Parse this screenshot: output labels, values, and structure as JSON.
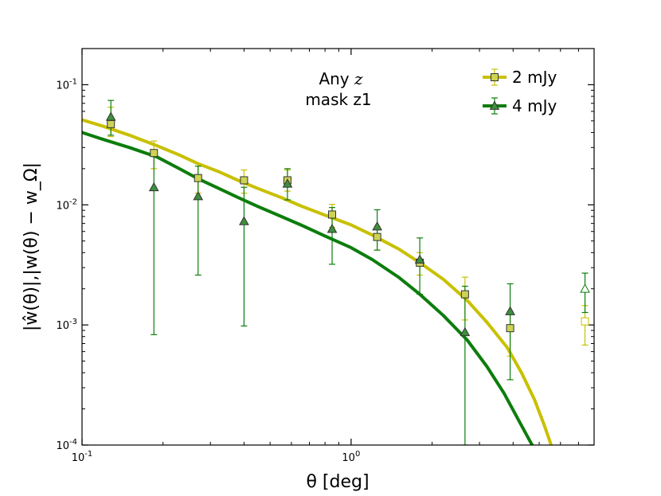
{
  "chart_data": {
    "type": "line",
    "xlabel": "θ [deg]",
    "ylabel": "|ŵ(θ)|,|w(θ) − w_Ω|",
    "xscale": "log",
    "yscale": "log",
    "xlim": [
      0.1,
      8.0
    ],
    "ylim": [
      0.0001,
      0.2
    ],
    "x_ticks": [
      {
        "value": 0.1,
        "base": "10",
        "exp": "-1"
      },
      {
        "value": 1.0,
        "base": "10",
        "exp": "0"
      }
    ],
    "y_ticks": [
      {
        "value": 0.0001,
        "base": "10",
        "exp": "-4"
      },
      {
        "value": 0.001,
        "base": "10",
        "exp": "-3"
      },
      {
        "value": 0.01,
        "base": "10",
        "exp": "-2"
      },
      {
        "value": 0.1,
        "base": "10",
        "exp": "-1"
      }
    ],
    "annotation": {
      "line1_prefix": "Any",
      "line1_var": "z",
      "line2": "mask z1"
    },
    "legend": {
      "placement": "top-right"
    },
    "series": [
      {
        "name": "2 mJy",
        "color": "#c8c000",
        "marker": "square",
        "marker_fill": "#cdd355",
        "model_x": [
          0.1,
          0.12,
          0.15,
          0.19,
          0.23,
          0.27,
          0.32,
          0.38,
          0.45,
          0.55,
          0.65,
          0.8,
          1.0,
          1.2,
          1.5,
          1.8,
          2.2,
          2.7,
          3.2,
          3.8,
          4.3,
          4.8,
          5.2,
          5.5,
          5.6
        ],
        "model_y": [
          0.051,
          0.045,
          0.038,
          0.031,
          0.026,
          0.022,
          0.019,
          0.016,
          0.0137,
          0.0115,
          0.0098,
          0.0082,
          0.0068,
          0.0056,
          0.0043,
          0.0033,
          0.0024,
          0.0016,
          0.00105,
          0.00065,
          0.0004,
          0.00024,
          0.00015,
          0.000105,
          9e-05
        ],
        "points": [
          {
            "x": 0.128,
            "y": 0.047,
            "lo": 0.037,
            "hi": 0.065,
            "open": false
          },
          {
            "x": 0.185,
            "y": 0.027,
            "lo": 0.02,
            "hi": 0.034,
            "open": false
          },
          {
            "x": 0.27,
            "y": 0.0167,
            "lo": 0.0125,
            "hi": 0.022,
            "open": false
          },
          {
            "x": 0.4,
            "y": 0.016,
            "lo": 0.0125,
            "hi": 0.0195,
            "open": false
          },
          {
            "x": 0.58,
            "y": 0.016,
            "lo": 0.013,
            "hi": 0.0195,
            "open": false
          },
          {
            "x": 0.85,
            "y": 0.0083,
            "lo": 0.0065,
            "hi": 0.0101,
            "open": false
          },
          {
            "x": 1.25,
            "y": 0.0054,
            "lo": 0.0042,
            "hi": 0.0066,
            "open": false
          },
          {
            "x": 1.8,
            "y": 0.0033,
            "lo": 0.0026,
            "hi": 0.004,
            "open": false
          },
          {
            "x": 2.65,
            "y": 0.0018,
            "lo": 0.0011,
            "hi": 0.0025,
            "open": false
          },
          {
            "x": 3.9,
            "y": 0.00094,
            "lo": 0.00055,
            "hi": 0.0013,
            "open": false
          },
          {
            "x": 7.4,
            "y": 0.00107,
            "lo": 0.00068,
            "hi": 0.00145,
            "open": true
          }
        ]
      },
      {
        "name": "4 mJy",
        "color": "#0c7d0c",
        "marker": "triangle",
        "marker_fill": "#3e8f3e",
        "model_x": [
          0.1,
          0.12,
          0.15,
          0.19,
          0.23,
          0.27,
          0.32,
          0.38,
          0.45,
          0.55,
          0.65,
          0.8,
          1.0,
          1.2,
          1.5,
          1.8,
          2.2,
          2.7,
          3.2,
          3.7,
          4.2,
          4.6,
          4.9,
          5.1
        ],
        "model_y": [
          0.04,
          0.035,
          0.03,
          0.025,
          0.02,
          0.0165,
          0.0138,
          0.0115,
          0.0097,
          0.008,
          0.0068,
          0.0055,
          0.0044,
          0.0035,
          0.0025,
          0.0018,
          0.0012,
          0.00075,
          0.00045,
          0.00027,
          0.00016,
          0.00011,
          8.5e-05,
          7e-05
        ],
        "points": [
          {
            "x": 0.128,
            "y": 0.054,
            "lo": 0.038,
            "hi": 0.074,
            "open": false
          },
          {
            "x": 0.185,
            "y": 0.014,
            "lo": 0.00083,
            "hi": 0.027,
            "open": false
          },
          {
            "x": 0.27,
            "y": 0.0118,
            "lo": 0.0026,
            "hi": 0.021,
            "open": false
          },
          {
            "x": 0.4,
            "y": 0.0073,
            "lo": 0.00098,
            "hi": 0.014,
            "open": false
          },
          {
            "x": 0.58,
            "y": 0.015,
            "lo": 0.011,
            "hi": 0.02,
            "open": false
          },
          {
            "x": 0.85,
            "y": 0.0063,
            "lo": 0.0032,
            "hi": 0.0095,
            "open": false
          },
          {
            "x": 1.25,
            "y": 0.0066,
            "lo": 0.0042,
            "hi": 0.0091,
            "open": false
          },
          {
            "x": 1.8,
            "y": 0.0035,
            "lo": 0.0018,
            "hi": 0.0053,
            "open": false
          },
          {
            "x": 2.65,
            "y": 0.00087,
            "lo": 0.0001,
            "hi": 0.0021,
            "open": false
          },
          {
            "x": 3.9,
            "y": 0.0013,
            "lo": 0.00035,
            "hi": 0.0022,
            "open": false
          },
          {
            "x": 7.4,
            "y": 0.002,
            "lo": 0.00127,
            "hi": 0.0027,
            "open": true
          }
        ]
      }
    ]
  }
}
